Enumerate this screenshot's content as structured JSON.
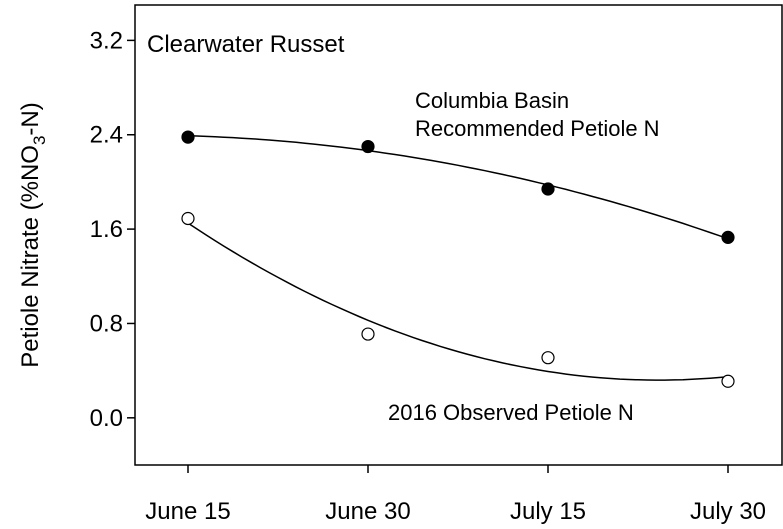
{
  "chart_data": {
    "type": "scatter",
    "title": "Clearwater Russet",
    "ylabel_parts": [
      "Petiole Nitrate (%NO",
      "3",
      "-N)"
    ],
    "categories": [
      "June 15",
      "June 30",
      "July 15",
      "July 30"
    ],
    "series": [
      {
        "name_lines": [
          "Columbia Basin",
          "Recommended Petiole N"
        ],
        "color": "#000000",
        "marker": "filled",
        "values": [
          2.38,
          2.3,
          1.94,
          1.53
        ]
      },
      {
        "name": "2016 Observed Petiole N",
        "color": "#000000",
        "marker": "open",
        "values": [
          1.69,
          0.71,
          0.51,
          0.31
        ]
      }
    ],
    "ylim": [
      -0.4,
      3.5
    ],
    "yticks": [
      3.2,
      2.4,
      1.6,
      0.8,
      {
        "value": 0,
        "label": "0.0"
      }
    ],
    "trend": "quadratic"
  }
}
